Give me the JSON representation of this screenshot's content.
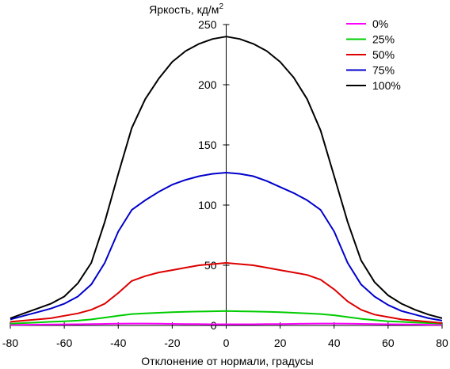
{
  "chart_data": {
    "type": "line",
    "title": "",
    "ylabel": "Яркость, кд/м",
    "ylabel_sup": "2",
    "xlabel": "Отклонение от нормали, градусы",
    "xlim": [
      -80,
      80
    ],
    "ylim": [
      0,
      250
    ],
    "xticks": [
      -80,
      -60,
      -40,
      -20,
      0,
      20,
      40,
      60,
      80
    ],
    "yticks": [
      0,
      50,
      100,
      150,
      200,
      250
    ],
    "legend_position": "top-right",
    "grid": false,
    "x": [
      -80,
      -75,
      -70,
      -65,
      -60,
      -55,
      -50,
      -45,
      -40,
      -35,
      -30,
      -25,
      -20,
      -15,
      -10,
      -5,
      0,
      5,
      10,
      15,
      20,
      25,
      30,
      35,
      40,
      45,
      50,
      55,
      60,
      65,
      70,
      75,
      80
    ],
    "series": [
      {
        "name": "0%",
        "color": "#ff00ff",
        "values": [
          0.5,
          0.6,
          0.7,
          0.8,
          0.9,
          1.0,
          1.1,
          1.3,
          1.5,
          1.6,
          1.6,
          1.5,
          1.3,
          1.2,
          1.1,
          1.0,
          1.0,
          1.0,
          1.0,
          1.1,
          1.2,
          1.3,
          1.5,
          1.6,
          1.6,
          1.5,
          1.3,
          1.1,
          1.0,
          0.9,
          0.8,
          0.6,
          0.5
        ]
      },
      {
        "name": "25%",
        "color": "#00cc00",
        "values": [
          1.5,
          2.0,
          2.5,
          3.0,
          3.5,
          4.0,
          5.0,
          6.5,
          8.0,
          9.5,
          10.0,
          10.5,
          11.0,
          11.3,
          11.6,
          11.8,
          12.0,
          11.8,
          11.6,
          11.3,
          11.0,
          10.5,
          10.0,
          9.5,
          8.5,
          7.0,
          5.5,
          4.5,
          3.5,
          3.0,
          2.5,
          2.0,
          1.5
        ]
      },
      {
        "name": "50%",
        "color": "#dd0000",
        "values": [
          3,
          4,
          5,
          6,
          8,
          10,
          13,
          18,
          27,
          37,
          41,
          44,
          46,
          48,
          50,
          51,
          52,
          51,
          50,
          48,
          46,
          44,
          42,
          38,
          30,
          20,
          13,
          9,
          7,
          5,
          4,
          3,
          2
        ]
      },
      {
        "name": "75%",
        "color": "#0000cc",
        "values": [
          5,
          8,
          11,
          14,
          18,
          24,
          34,
          52,
          78,
          96,
          104,
          111,
          117,
          121,
          124,
          126,
          127,
          126,
          124,
          120,
          115,
          110,
          104,
          96,
          78,
          52,
          34,
          24,
          17,
          12,
          9,
          6,
          4
        ]
      },
      {
        "name": "100%",
        "color": "#000000",
        "values": [
          6,
          10,
          14,
          18,
          24,
          35,
          52,
          86,
          126,
          164,
          188,
          205,
          219,
          228,
          234,
          238,
          240,
          238,
          234,
          228,
          219,
          206,
          188,
          162,
          124,
          86,
          54,
          36,
          25,
          18,
          13,
          9,
          6
        ]
      }
    ]
  }
}
